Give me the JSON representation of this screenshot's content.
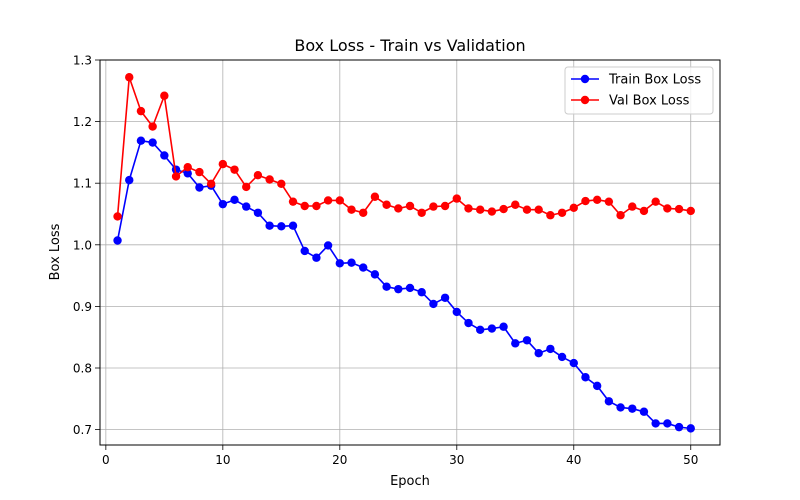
{
  "chart_data": {
    "type": "line",
    "title": "Box Loss - Train vs Validation",
    "xlabel": "Epoch",
    "ylabel": "Box Loss",
    "xlim": [
      -0.5,
      52.5
    ],
    "ylim": [
      0.675,
      1.3
    ],
    "xticks": [
      0,
      10,
      20,
      30,
      40,
      50
    ],
    "yticks": [
      0.7,
      0.8,
      0.9,
      1.0,
      1.1,
      1.2,
      1.3
    ],
    "xtick_labels": [
      "0",
      "10",
      "20",
      "30",
      "40",
      "50"
    ],
    "ytick_labels": [
      "0.7",
      "0.8",
      "0.9",
      "1.0",
      "1.1",
      "1.2",
      "1.3"
    ],
    "grid": true,
    "legend_position": "top-right",
    "x": [
      1,
      2,
      3,
      4,
      5,
      6,
      7,
      8,
      9,
      10,
      11,
      12,
      13,
      14,
      15,
      16,
      17,
      18,
      19,
      20,
      21,
      22,
      23,
      24,
      25,
      26,
      27,
      28,
      29,
      30,
      31,
      32,
      33,
      34,
      35,
      36,
      37,
      38,
      39,
      40,
      41,
      42,
      43,
      44,
      45,
      46,
      47,
      48,
      49,
      50
    ],
    "series": [
      {
        "name": "Train Box Loss",
        "color": "#0000ff",
        "values": [
          1.007,
          1.105,
          1.169,
          1.166,
          1.145,
          1.122,
          1.116,
          1.093,
          1.096,
          1.066,
          1.073,
          1.062,
          1.052,
          1.031,
          1.03,
          1.031,
          0.99,
          0.979,
          0.999,
          0.97,
          0.971,
          0.963,
          0.952,
          0.932,
          0.928,
          0.93,
          0.923,
          0.904,
          0.914,
          0.891,
          0.873,
          0.862,
          0.864,
          0.867,
          0.84,
          0.845,
          0.824,
          0.831,
          0.818,
          0.808,
          0.785,
          0.771,
          0.746,
          0.736,
          0.734,
          0.729,
          0.71,
          0.71,
          0.704,
          0.702
        ]
      },
      {
        "name": "Val Box Loss",
        "color": "#ff0000",
        "values": [
          1.046,
          1.272,
          1.217,
          1.192,
          1.242,
          1.111,
          1.126,
          1.118,
          1.099,
          1.131,
          1.122,
          1.094,
          1.113,
          1.106,
          1.099,
          1.07,
          1.063,
          1.063,
          1.072,
          1.072,
          1.057,
          1.052,
          1.078,
          1.065,
          1.059,
          1.063,
          1.052,
          1.062,
          1.063,
          1.075,
          1.059,
          1.057,
          1.054,
          1.058,
          1.065,
          1.057,
          1.057,
          1.048,
          1.052,
          1.06,
          1.071,
          1.073,
          1.07,
          1.048,
          1.062,
          1.055,
          1.07,
          1.059,
          1.058,
          1.055
        ]
      }
    ]
  }
}
